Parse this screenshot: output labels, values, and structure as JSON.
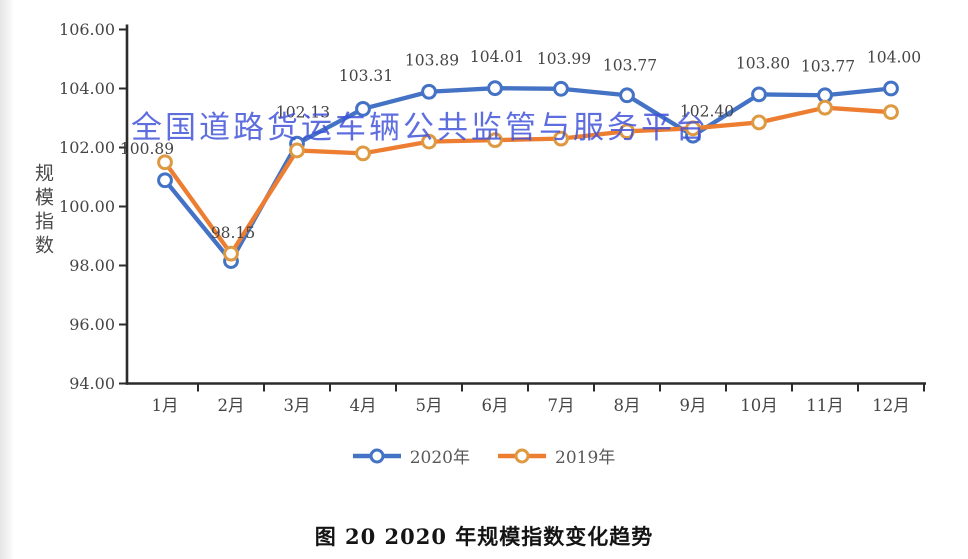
{
  "watermark": {
    "text": "全国道路货运车辆公共监管与服务平台",
    "color": "#3D4FD9"
  },
  "caption": "图 20 2020 年规模指数变化趋势",
  "chart_data": {
    "type": "line",
    "title": "",
    "xlabel": "",
    "ylabel": "规模指数",
    "grid": false,
    "legend_position": "bottom",
    "categories": [
      "1月",
      "2月",
      "3月",
      "4月",
      "5月",
      "6月",
      "7月",
      "8月",
      "9月",
      "10月",
      "11月",
      "12月"
    ],
    "y_axis": {
      "min": 94,
      "max": 106,
      "step": 2,
      "tick_labels": [
        "106.00",
        "104.00",
        "102.00",
        "100.00",
        "98.00",
        "96.00",
        "94.00"
      ]
    },
    "series": [
      {
        "name": "2020年",
        "color": "#4472C4",
        "marker_color": "#4472C4",
        "values": [
          100.89,
          98.15,
          102.13,
          103.31,
          103.89,
          104.01,
          103.99,
          103.77,
          102.4,
          103.8,
          103.77,
          104.0
        ],
        "data_labels": [
          {
            "text": "100.89",
            "dx": -18,
            "dy": -26
          },
          {
            "text": "98.15",
            "dx": 2,
            "dy": -23
          },
          {
            "text": "102.13",
            "dx": 6,
            "dy": -26
          },
          {
            "text": "103.31",
            "dx": 3,
            "dy": -28
          },
          {
            "text": "103.89",
            "dx": 3,
            "dy": -26
          },
          {
            "text": "104.01",
            "dx": 2,
            "dy": -26
          },
          {
            "text": "103.99",
            "dx": 3,
            "dy": -25
          },
          {
            "text": "103.77",
            "dx": 3,
            "dy": -25
          },
          {
            "text": "102.40",
            "dx": 14,
            "dy": -19
          },
          {
            "text": "103.80",
            "dx": 4,
            "dy": -26
          },
          {
            "text": "103.77",
            "dx": 3,
            "dy": -24
          },
          {
            "text": "104.00",
            "dx": 3,
            "dy": -26
          }
        ]
      },
      {
        "name": "2019年",
        "color": "#ED7D31",
        "marker_color": "#DE9A43",
        "values": [
          101.5,
          98.4,
          101.9,
          101.8,
          102.2,
          102.25,
          102.3,
          102.55,
          102.65,
          102.85,
          103.35,
          103.2
        ],
        "data_labels": null
      }
    ]
  }
}
